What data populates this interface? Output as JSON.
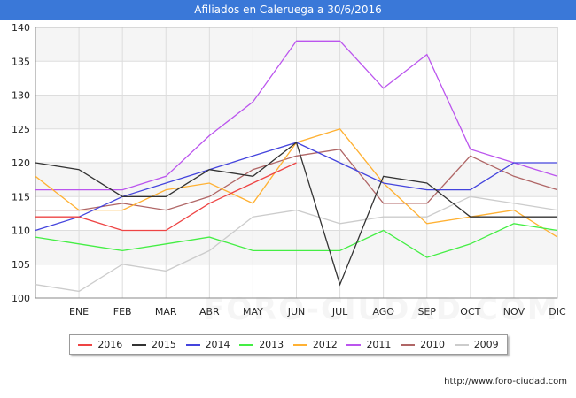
{
  "title": "Afiliados en Caleruega a 30/6/2016",
  "footer_url": "http://www.foro-ciudad.com",
  "watermark": "FORO-CIUDAD.COM",
  "chart_data": {
    "type": "line",
    "title": "Afiliados en Caleruega a 30/6/2016",
    "xlabel": "",
    "ylabel": "",
    "categories": [
      "",
      "ENE",
      "FEB",
      "MAR",
      "ABR",
      "MAY",
      "JUN",
      "JUL",
      "AGO",
      "SEP",
      "OCT",
      "NOV",
      "DIC"
    ],
    "ylim": [
      100,
      140
    ],
    "yticks": [
      100,
      105,
      110,
      115,
      120,
      125,
      130,
      135,
      140
    ],
    "grid": true,
    "legend_position": "bottom",
    "series": [
      {
        "name": "2016",
        "color": "#ee4444",
        "values": [
          112,
          112,
          110,
          110,
          114,
          117,
          120,
          null,
          null,
          null,
          null,
          null,
          null
        ]
      },
      {
        "name": "2015",
        "color": "#333333",
        "values": [
          120,
          119,
          115,
          115,
          119,
          118,
          123,
          102,
          118,
          117,
          112,
          112,
          112
        ]
      },
      {
        "name": "2014",
        "color": "#4444dd",
        "values": [
          110,
          112,
          115,
          117,
          119,
          121,
          123,
          120,
          117,
          116,
          116,
          120,
          120
        ]
      },
      {
        "name": "2013",
        "color": "#44ee44",
        "values": [
          109,
          108,
          107,
          108,
          109,
          107,
          107,
          107,
          110,
          106,
          108,
          111,
          110
        ]
      },
      {
        "name": "2012",
        "color": "#ffb133",
        "values": [
          118,
          113,
          113,
          116,
          117,
          114,
          123,
          125,
          117,
          111,
          112,
          113,
          109
        ]
      },
      {
        "name": "2011",
        "color": "#bb55ee",
        "values": [
          116,
          116,
          116,
          118,
          124,
          129,
          138,
          138,
          131,
          136,
          122,
          120,
          118
        ]
      },
      {
        "name": "2010",
        "color": "#b06666",
        "values": [
          113,
          113,
          114,
          113,
          115,
          119,
          121,
          122,
          114,
          114,
          121,
          118,
          116
        ]
      },
      {
        "name": "2009",
        "color": "#cccccc",
        "values": [
          102,
          101,
          105,
          104,
          107,
          112,
          113,
          111,
          112,
          112,
          115,
          114,
          113
        ]
      }
    ]
  }
}
